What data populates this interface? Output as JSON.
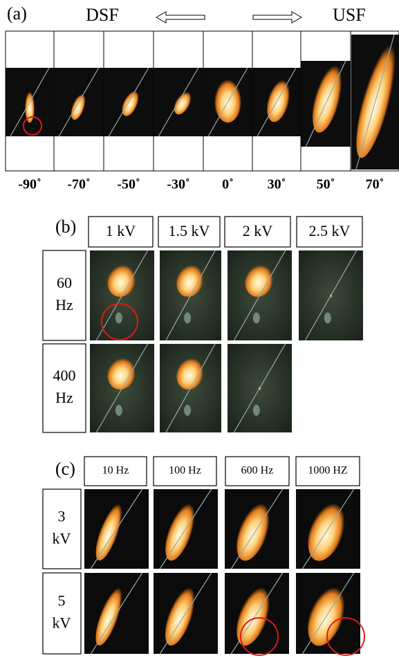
{
  "panel_a": {
    "label": "(a)",
    "left_label": "DSF",
    "right_label": "USF",
    "angles": [
      "-90˚",
      "-70˚",
      "-50˚",
      "-30˚",
      "0˚",
      "30˚",
      "50˚",
      "70˚"
    ]
  },
  "panel_b": {
    "label": "(b)",
    "columns": [
      "1 kV",
      "1.5 kV",
      "2 kV",
      "2.5 kV"
    ],
    "rows": [
      [
        "60",
        "Hz"
      ],
      [
        "400",
        "Hz"
      ]
    ]
  },
  "panel_c": {
    "label": "(c)",
    "columns": [
      "10 Hz",
      "100 Hz",
      "600 Hz",
      "1000 HZ"
    ],
    "rows": [
      [
        "3",
        "kV"
      ],
      [
        "5",
        "kV"
      ]
    ]
  }
}
